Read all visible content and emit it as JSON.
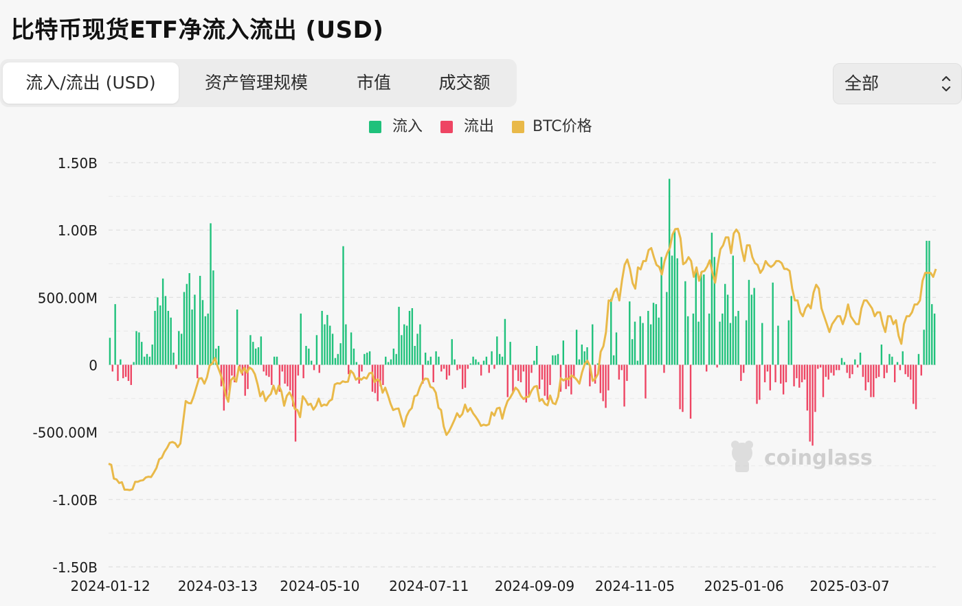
{
  "title": "比特币现货ETF净流入流出 (USD)",
  "tabs": [
    {
      "label": "流入/流出 (USD)",
      "active": true
    },
    {
      "label": "资产管理规模",
      "active": false
    },
    {
      "label": "市值",
      "active": false
    },
    {
      "label": "成交额",
      "active": false
    }
  ],
  "filter": {
    "selected": "全部"
  },
  "watermark": "coinglass",
  "colors": {
    "inflow": "#1fc17b",
    "outflow": "#ee4563",
    "btc_price": "#e9b949",
    "grid": "#dedede",
    "axis_text": "#1a1a1a"
  },
  "chart_data": {
    "type": "bar",
    "title": "比特币现货ETF净流入流出 (USD)",
    "legend": [
      {
        "label": "流入",
        "color": "#1fc17b"
      },
      {
        "label": "流出",
        "color": "#ee4563"
      },
      {
        "label": "BTC价格",
        "color": "#e9b949"
      }
    ],
    "legend_position": "top-center",
    "grid": true,
    "ylim": [
      -1500000000,
      1500000000
    ],
    "yticks": [
      {
        "value": 1500000000,
        "label": "1.50B"
      },
      {
        "value": 1000000000,
        "label": "1.00B"
      },
      {
        "value": 500000000,
        "label": "500.00M"
      },
      {
        "value": 0,
        "label": "0"
      },
      {
        "value": -500000000,
        "label": "-500.00M"
      },
      {
        "value": -1000000000,
        "label": "-1.00B"
      },
      {
        "value": -1500000000,
        "label": "-1.50B"
      }
    ],
    "xticks": [
      "2024-01-12",
      "2024-03-13",
      "2024-05-10",
      "2024-07-11",
      "2024-09-09",
      "2024-11-05",
      "2025-01-06",
      "2025-03-07"
    ],
    "x_start": "2024-01-11",
    "x_end": "2025-04-25",
    "series": [
      {
        "name": "净流入流出",
        "values": [
          200,
          -50,
          450,
          -120,
          40,
          -100,
          -90,
          -120,
          -150,
          20,
          250,
          240,
          170,
          60,
          80,
          60,
          150,
          400,
          500,
          440,
          640,
          510,
          400,
          350,
          90,
          -30,
          250,
          230,
          540,
          600,
          680,
          410,
          520,
          -100,
          660,
          480,
          360,
          380,
          1050,
          700,
          120,
          140,
          -160,
          -340,
          -250,
          -190,
          -80,
          -130,
          410,
          -30,
          -80,
          -230,
          -180,
          220,
          170,
          120,
          130,
          210,
          -50,
          -80,
          -90,
          -150,
          60,
          60,
          -200,
          -50,
          -140,
          -160,
          -190,
          -310,
          -570,
          -80,
          380,
          -100,
          140,
          120,
          30,
          -40,
          220,
          -60,
          400,
          300,
          370,
          290,
          230,
          50,
          80,
          160,
          880,
          300,
          -70,
          240,
          120,
          20,
          -140,
          -50,
          80,
          90,
          100,
          -200,
          -210,
          -270,
          -160,
          -150,
          60,
          20,
          40,
          120,
          80,
          430,
          220,
          300,
          290,
          400,
          420,
          140,
          230,
          300,
          -140,
          90,
          30,
          60,
          -130,
          100,
          60,
          -50,
          -30,
          -110,
          -80,
          190,
          40,
          -40,
          -30,
          -180,
          -170,
          -30,
          10,
          60,
          40,
          20,
          -80,
          30,
          60,
          -60,
          100,
          -30,
          210,
          80,
          60,
          340,
          -240,
          170,
          -210,
          -40,
          -120,
          -130,
          -50,
          -280,
          -230,
          -60,
          30,
          140,
          -180,
          -110,
          -230,
          -260,
          -150,
          70,
          70,
          80,
          -200,
          180,
          -180,
          -160,
          -220,
          -100,
          260,
          40,
          150,
          100,
          130,
          -160,
          300,
          -140,
          10,
          -210,
          -270,
          -320,
          -190,
          490,
          70,
          240,
          -110,
          -40,
          -310,
          -120,
          470,
          190,
          320,
          30,
          360,
          310,
          -250,
          400,
          300,
          460,
          450,
          350,
          800,
          -60,
          540,
          1380,
          810,
          1000,
          790,
          -330,
          -350,
          620,
          360,
          -400,
          380,
          700,
          320,
          690,
          670,
          -50,
          380,
          980,
          800,
          -20,
          320,
          380,
          600,
          520,
          310,
          810,
          360,
          400,
          -120,
          -60,
          330,
          630,
          520,
          570,
          -290,
          -260,
          310,
          -130,
          -50,
          -190,
          610,
          -130,
          290,
          -140,
          -220,
          -130,
          330,
          510,
          -160,
          -100,
          -170,
          -130,
          -110,
          -340,
          -570,
          -600,
          -350,
          -30,
          -20,
          -240,
          -90,
          -110,
          -60,
          -80,
          -40,
          -40,
          50,
          20,
          -60,
          -100,
          -70,
          40,
          -20,
          90,
          -90,
          -190,
          -130,
          -240,
          -240,
          -100,
          -90,
          150,
          -100,
          -60,
          80,
          60,
          -130,
          20,
          -40,
          100,
          -70,
          -90,
          -110,
          -290,
          -330,
          80,
          -80,
          260,
          920,
          920,
          450,
          380
        ],
        "unit": "USD millions"
      },
      {
        "name": "BTC价格",
        "unit": "USD",
        "values": [
          46600,
          46300,
          42800,
          42600,
          41700,
          41900,
          40000,
          40000,
          39900,
          40100,
          42000,
          42000,
          42300,
          42400,
          43100,
          43300,
          43200,
          44300,
          45500,
          47700,
          48100,
          49600,
          50600,
          51900,
          52100,
          51800,
          50800,
          51700,
          57100,
          62500,
          62000,
          61900,
          63700,
          66000,
          68200,
          68300,
          66900,
          68500,
          71500,
          72000,
          73400,
          71300,
          69500,
          67400,
          64100,
          62300,
          67800,
          68500,
          67400,
          71200,
          69600,
          70900,
          69700,
          71000,
          70500,
          69300,
          66800,
          63700,
          64900,
          62500,
          63600,
          64300,
          66400,
          64300,
          66400,
          64900,
          61300,
          63800,
          64700,
          63400,
          60500,
          60200,
          58400,
          63700,
          62800,
          61500,
          61800,
          60300,
          61300,
          63100,
          61200,
          61600,
          61400,
          62500,
          62900,
          66700,
          67000,
          66900,
          67500,
          67300,
          67400,
          70200,
          69500,
          67900,
          68400,
          67900,
          68500,
          68200,
          69500,
          69700,
          67300,
          68000,
          67500,
          64600,
          65900,
          64000,
          61800,
          60200,
          60500,
          60600,
          58200,
          56000,
          58600,
          60000,
          60700,
          63700,
          64000,
          66000,
          67400,
          68200,
          68100,
          66100,
          65800,
          64600,
          60800,
          60200,
          56000,
          53900,
          54800,
          56200,
          57700,
          59400,
          58400,
          59200,
          61600,
          59800,
          60700,
          59400,
          58500,
          57500,
          56200,
          56500,
          56300,
          56600,
          59600,
          58800,
          60600,
          60800,
          58000,
          60600,
          62500,
          63400,
          64600,
          65900,
          65200,
          63800,
          63000,
          63500,
          63600,
          65100,
          66100,
          66300,
          62500,
          63000,
          61800,
          61400,
          63900,
          62000,
          61700,
          63600,
          68300,
          67700,
          68200,
          68000,
          69000,
          68600,
          67900,
          66900,
          69800,
          71900,
          72700,
          71400,
          67600,
          68200,
          69400,
          75000,
          76400,
          80000,
          88000,
          87900,
          90200,
          91000,
          88000,
          93100,
          97000,
          98400,
          96000,
          92400,
          91000,
          96400,
          95900,
          98000,
          98000,
          100800,
          101300,
          99000,
          97000,
          96500,
          94600,
          98000,
          100000,
          101400,
          104700,
          106100,
          106200,
          103800,
          97200,
          97700,
          99000,
          98000,
          94000,
          96400,
          93000,
          95300,
          95500,
          96600,
          98200,
          95000,
          92500,
          97000,
          101000,
          102000,
          104000,
          104000,
          100000,
          105000,
          106000,
          105000,
          101000,
          98000,
          102000,
          102000,
          99000,
          97500,
          97000,
          95000,
          96000,
          98000,
          97000,
          96500,
          97000,
          98000,
          98000,
          97500,
          96000,
          96000,
          95500,
          91000,
          88000,
          88000,
          85000,
          84000,
          86000,
          87000,
          86000,
          90000,
          92000,
          91000,
          86000,
          84000,
          82000,
          80000,
          82000,
          83000,
          84000,
          84000,
          82000,
          84000,
          87000,
          84000,
          83000,
          82000,
          82000,
          86000,
          88000,
          88000,
          87000,
          86000,
          84000,
          85000,
          85000,
          82000,
          80000,
          84000,
          84000,
          82000,
          83000,
          79000,
          77000,
          82000,
          84000,
          84000,
          85000,
          87000,
          87000,
          88000,
          93000,
          95000,
          95000,
          95000,
          94000,
          96000
        ]
      }
    ]
  }
}
